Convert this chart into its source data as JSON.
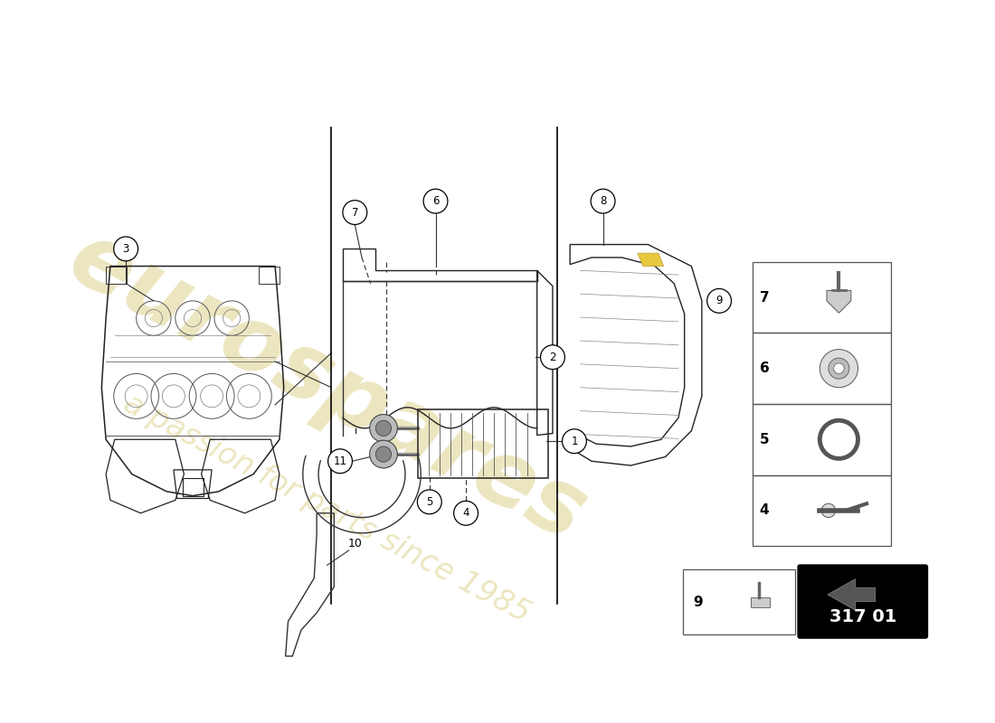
{
  "background_color": "#ffffff",
  "watermark_color": "#c8b84a",
  "page_code": "317 01",
  "fig_w": 11.0,
  "fig_h": 8.0,
  "dpi": 100
}
